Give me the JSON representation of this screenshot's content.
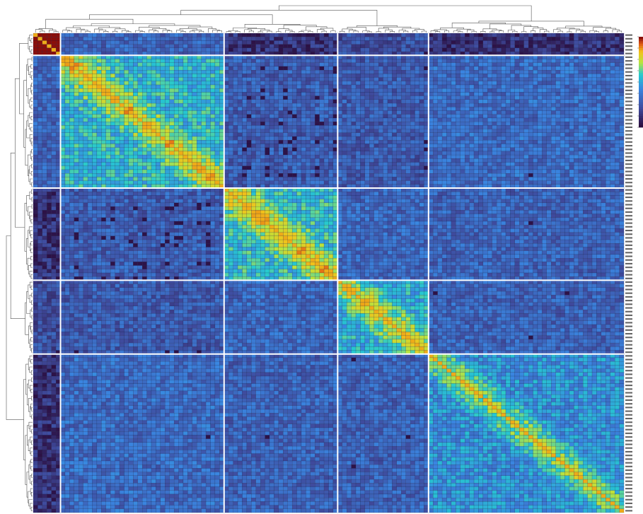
{
  "chart_data": {
    "type": "heatmap",
    "title": "",
    "xlabel": "",
    "ylabel": "",
    "value_range": [
      0,
      1
    ],
    "grid": true,
    "dendrograms": [
      "top",
      "left"
    ],
    "colorbar": {
      "placement": "right",
      "colormap": "jet-like",
      "tick_labels": []
    },
    "colormap_stops": [
      {
        "v": 0.0,
        "color": "#2b0d3f"
      },
      {
        "v": 0.2,
        "color": "#3f4a9c"
      },
      {
        "v": 0.42,
        "color": "#3a85e0"
      },
      {
        "v": 0.58,
        "color": "#25c9d0"
      },
      {
        "v": 0.72,
        "color": "#b9e33e"
      },
      {
        "v": 0.84,
        "color": "#f2c21a"
      },
      {
        "v": 0.93,
        "color": "#e05a14"
      },
      {
        "v": 1.0,
        "color": "#8a0e0a"
      }
    ],
    "clusters": [
      {
        "id": 1,
        "size": 6
      },
      {
        "id": 2,
        "size": 36
      },
      {
        "id": 3,
        "size": 25
      },
      {
        "id": 4,
        "size": 20
      },
      {
        "id": 5,
        "size": 43
      }
    ],
    "block_levels": [
      [
        0.92,
        0.3,
        0.12,
        0.22,
        0.12
      ],
      [
        0.3,
        0.55,
        0.28,
        0.27,
        0.33
      ],
      [
        0.12,
        0.28,
        0.56,
        0.32,
        0.3
      ],
      [
        0.22,
        0.27,
        0.32,
        0.52,
        0.3
      ],
      [
        0.12,
        0.33,
        0.3,
        0.3,
        0.45
      ]
    ],
    "dark_fraction": [
      [
        0.0,
        0.15,
        0.55,
        0.3,
        0.35
      ],
      [
        0.15,
        0.0,
        0.4,
        0.25,
        0.08
      ],
      [
        0.55,
        0.4,
        0.0,
        0.22,
        0.1
      ],
      [
        0.3,
        0.25,
        0.22,
        0.0,
        0.12
      ],
      [
        0.35,
        0.08,
        0.1,
        0.12,
        0.0
      ]
    ],
    "diagonal_value": 0.86,
    "row_labels": []
  }
}
